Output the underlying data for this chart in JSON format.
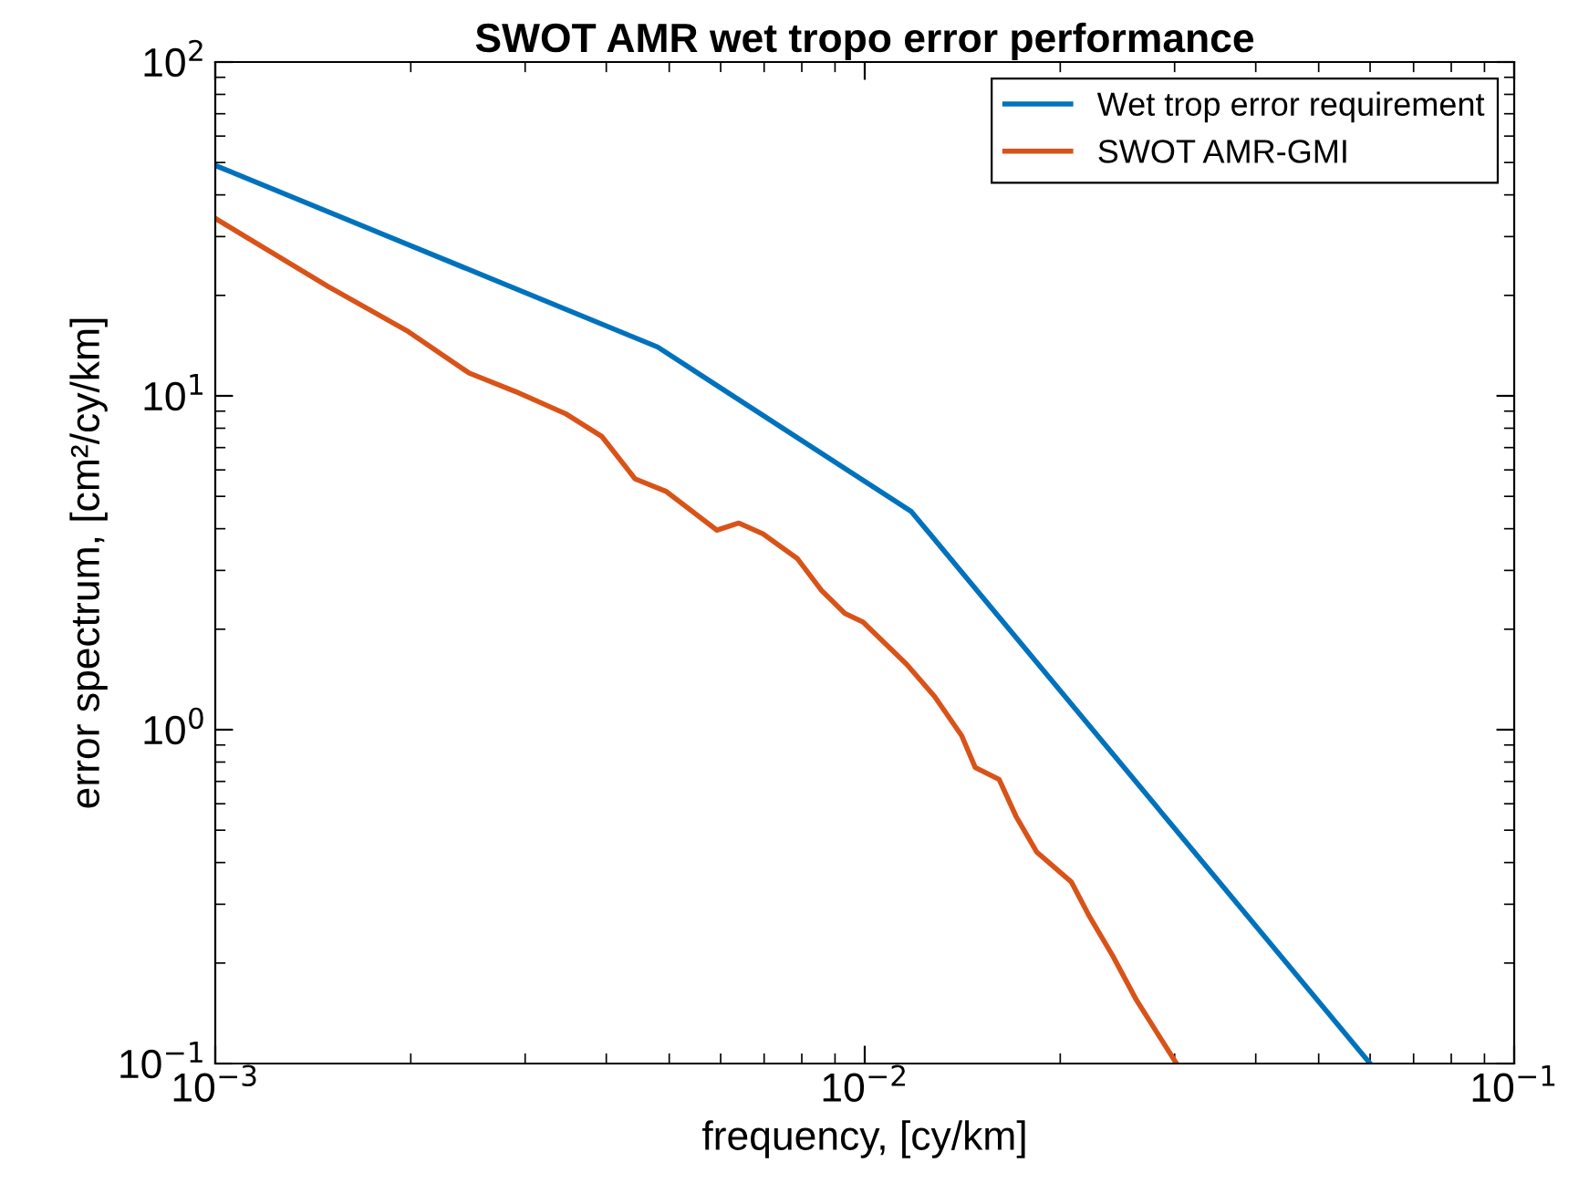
{
  "chart_data": {
    "type": "line",
    "title": "SWOT AMR wet tropo error performance",
    "xlabel": "frequency, [cy/km]",
    "ylabel": "error spectrum, [cm²/cy/km]",
    "log": "xy",
    "xlim": [
      0.001,
      0.1
    ],
    "ylim": [
      0.1,
      100
    ],
    "xticks": [
      {
        "value": 0.001,
        "label": "10$^{−3}$"
      },
      {
        "value": 0.01,
        "label": "10$^{−2}$"
      },
      {
        "value": 0.1,
        "label": "10$^{−1}$"
      }
    ],
    "yticks": [
      {
        "value": 0.1,
        "label": "10$^{−1}$"
      },
      {
        "value": 1,
        "label": "10$^{0}$"
      },
      {
        "value": 10,
        "label": "10$^{1}$"
      },
      {
        "value": 100,
        "label": "10$^{2}$"
      }
    ],
    "grid": false,
    "legend": "top right",
    "marker": "none",
    "line_style": "solid",
    "series": [
      {
        "name": "Wet trop error requirement",
        "color": "#0072bd",
        "x": [
          0.001,
          0.0048,
          0.0118,
          0.06
        ],
        "values": [
          49,
          14,
          4.5,
          0.1
        ]
      },
      {
        "name": "SWOT AMR-GMI",
        "color": "#d95319",
        "x": [
          0.001,
          0.00149,
          0.00197,
          0.00246,
          0.0029,
          0.00346,
          0.00394,
          0.00443,
          0.00494,
          0.00592,
          0.0064,
          0.00697,
          0.00787,
          0.00857,
          0.00932,
          0.00994,
          0.0116,
          0.0128,
          0.0141,
          0.0148,
          0.0161,
          0.0171,
          0.0184,
          0.0208,
          0.0222,
          0.0241,
          0.0262,
          0.0302
        ],
        "values": [
          34,
          21.3,
          15.7,
          11.7,
          10.3,
          8.85,
          7.55,
          5.64,
          5.18,
          3.96,
          4.16,
          3.86,
          3.26,
          2.62,
          2.23,
          2.1,
          1.57,
          1.26,
          0.96,
          0.77,
          0.71,
          0.55,
          0.43,
          0.35,
          0.275,
          0.21,
          0.155,
          0.1
        ]
      }
    ]
  }
}
